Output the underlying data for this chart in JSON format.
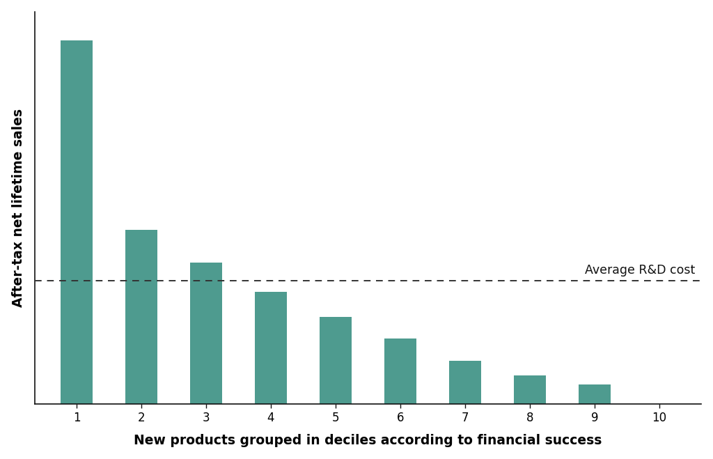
{
  "categories": [
    1,
    2,
    3,
    4,
    5,
    6,
    7,
    8,
    9,
    10
  ],
  "values": [
    100,
    48,
    39,
    31,
    24,
    18,
    12,
    8,
    5.5,
    0
  ],
  "bar_color": "#4e9b8f",
  "hline_y": 34,
  "hline_label": "Average R&D cost",
  "xlabel": "New products grouped in deciles according to financial success",
  "ylabel": "After-tax net lifetime sales",
  "xlim": [
    0.35,
    10.65
  ],
  "ylim": [
    0,
    108
  ],
  "bar_width": 0.5,
  "background_color": "#ffffff",
  "xlabel_fontsize": 13.5,
  "ylabel_fontsize": 13.5,
  "tick_fontsize": 12,
  "hline_label_fontsize": 12.5,
  "hline_color": "#333333",
  "spine_color": "#111111"
}
